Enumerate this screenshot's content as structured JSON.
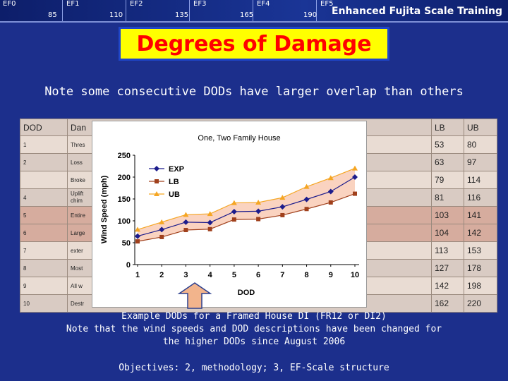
{
  "banner": {
    "scale_labels": [
      "EF0",
      "EF1",
      "EF2",
      "EF3",
      "EF4",
      "EF5"
    ],
    "scale_speeds": [
      "85",
      "110",
      "135",
      "165",
      "190"
    ],
    "title": "Enhanced Fujita Scale Training"
  },
  "slide": {
    "title": "Degrees of Damage",
    "subtitle": "Note some consecutive DODs have larger overlap than others"
  },
  "table": {
    "headers": {
      "dod": "DOD",
      "damage": "Dan",
      "lb": "LB",
      "ub": "UB"
    },
    "rows": [
      {
        "dod": "1",
        "desc": "Thres",
        "lb": "53",
        "ub": "80"
      },
      {
        "dod": "2",
        "desc": "Loss",
        "lb": "63",
        "ub": "97"
      },
      {
        "dod": "",
        "desc": "Broke",
        "lb": "79",
        "ub": "114"
      },
      {
        "dod": "4",
        "desc": "Uplift",
        "desc2": "chim",
        "lb": "81",
        "ub": "116"
      },
      {
        "dod": "5",
        "desc": "Entire",
        "lb": "103",
        "ub": "141"
      },
      {
        "dod": "6",
        "desc": "Large",
        "lb": "104",
        "ub": "142"
      },
      {
        "dod": "7",
        "desc": "exter",
        "lb": "113",
        "ub": "153"
      },
      {
        "dod": "8",
        "desc": "Most",
        "lb": "127",
        "ub": "178"
      },
      {
        "dod": "9",
        "desc": "All w",
        "lb": "142",
        "ub": "198"
      },
      {
        "dod": "10",
        "desc": "Destr",
        "lb": "162",
        "ub": "220"
      }
    ]
  },
  "chart_data": {
    "type": "line",
    "title": "One, Two Family House",
    "xlabel": "DOD",
    "ylabel": "Wind Speed (mph)",
    "x": [
      1,
      2,
      3,
      4,
      5,
      6,
      7,
      8,
      9,
      10
    ],
    "xlim": [
      1,
      10
    ],
    "ylim": [
      0,
      250
    ],
    "yticks": [
      0,
      50,
      100,
      150,
      200,
      250
    ],
    "legend_position": "top-left",
    "grid": false,
    "series": [
      {
        "name": "EXP",
        "values": [
          65,
          80,
          97,
          96,
          121,
          122,
          132,
          149,
          167,
          200
        ],
        "color": "#1c1c8c",
        "marker": "diamond"
      },
      {
        "name": "LB",
        "values": [
          53,
          63,
          79,
          81,
          103,
          104,
          113,
          127,
          142,
          162
        ],
        "color": "#a0401c",
        "marker": "square"
      },
      {
        "name": "UB",
        "values": [
          80,
          97,
          114,
          116,
          141,
          142,
          153,
          178,
          198,
          220
        ],
        "color": "#f5a623",
        "marker": "triangle"
      }
    ],
    "band_fill": "#fad3c0"
  },
  "caption": {
    "line1": "Example DODs for a Framed House DI  (FR12 or DI2)",
    "line2": "Note that the wind speeds and DOD descriptions have been changed for",
    "line3": "the higher DODs since August 2006"
  },
  "objectives": "Objectives:  2,  methodology; 3, EF-Scale structure",
  "colors": {
    "background": "#1c2f8c",
    "title_box": "#ffff00",
    "title_text": "#ff0000",
    "callout_arrow": "#f2b48c"
  }
}
